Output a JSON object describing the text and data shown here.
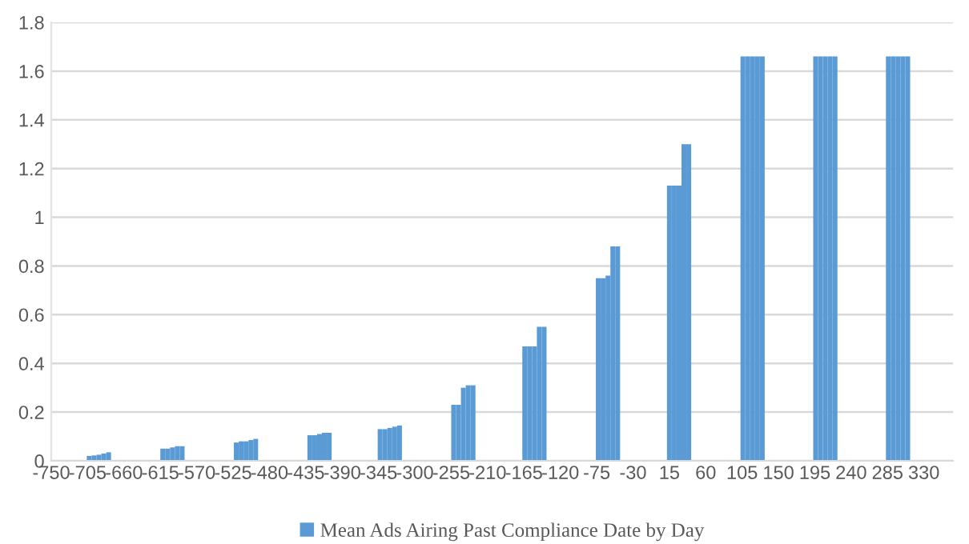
{
  "chart_data": {
    "type": "bar",
    "xlim": [
      -750,
      366
    ],
    "xticks": [
      -750,
      -705,
      -660,
      -615,
      -570,
      -525,
      -480,
      -435,
      -390,
      -345,
      -300,
      -255,
      -210,
      -165,
      -120,
      -75,
      -30,
      15,
      60,
      105,
      150,
      195,
      240,
      285,
      330
    ],
    "ylim": [
      0,
      1.8
    ],
    "yticks": [
      0,
      0.2,
      0.4,
      0.6,
      0.8,
      1,
      1.2,
      1.4,
      1.6,
      1.8
    ],
    "grid": "y",
    "legend": "bottom",
    "series": [
      {
        "name": "Mean Ads Airing Past Compliance Date by Day",
        "color": "#5b9bd5",
        "x": [
          -703,
          -697,
          -691,
          -685,
          -679,
          -612,
          -606,
          -600,
          -594,
          -588,
          -521,
          -515,
          -509,
          -503,
          -497,
          -430,
          -424,
          -418,
          -412,
          -406,
          -343,
          -337,
          -331,
          -325,
          -319,
          -252,
          -246,
          -240,
          -234,
          -228,
          -164,
          -158,
          -152,
          -146,
          -140,
          -73,
          -67,
          -61,
          -55,
          -49,
          15,
          21,
          27,
          33,
          39,
          106,
          112,
          118,
          124,
          130,
          196,
          202,
          208,
          214,
          220,
          286,
          292,
          298,
          304,
          310
        ],
        "values": [
          0.02,
          0.022,
          0.025,
          0.03,
          0.035,
          0.05,
          0.05,
          0.055,
          0.06,
          0.06,
          0.075,
          0.08,
          0.08,
          0.085,
          0.09,
          0.105,
          0.105,
          0.11,
          0.115,
          0.115,
          0.13,
          0.13,
          0.135,
          0.14,
          0.145,
          0.23,
          0.23,
          0.3,
          0.31,
          0.31,
          0.47,
          0.47,
          0.47,
          0.55,
          0.55,
          0.75,
          0.75,
          0.76,
          0.88,
          0.88,
          1.13,
          1.13,
          1.13,
          1.3,
          1.3,
          1.66,
          1.66,
          1.66,
          1.66,
          1.66,
          1.66,
          1.66,
          1.66,
          1.66,
          1.66,
          1.66,
          1.66,
          1.66,
          1.66,
          1.66
        ]
      }
    ]
  }
}
